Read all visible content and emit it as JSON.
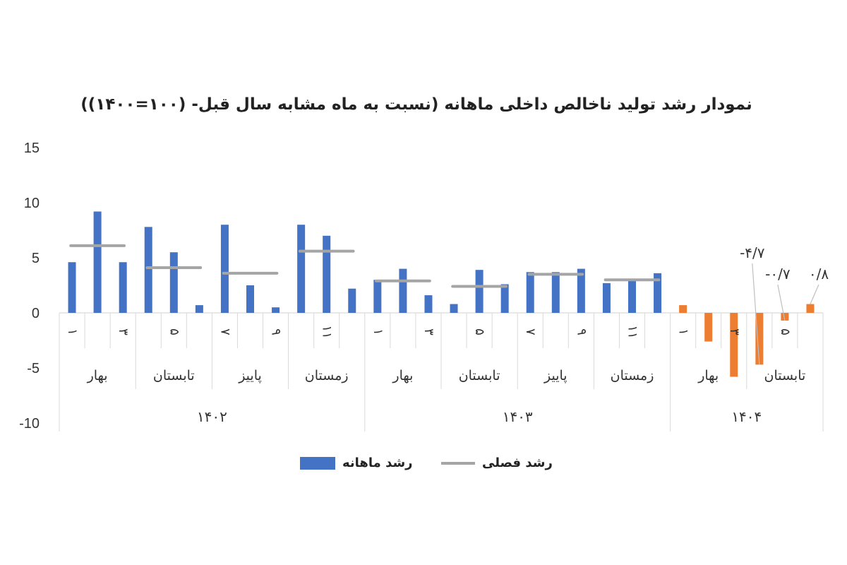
{
  "chart_data": {
    "type": "bar",
    "title": "نمودار رشد تولید ناخالص داخلی ماهانه (نسبت به ماه مشابه سال قبل- (۱۰۰=۱۴۰۰))",
    "y_ticks": [
      "15",
      "10",
      "5",
      "0",
      "-5",
      "-10"
    ],
    "ylim": [
      -10,
      15
    ],
    "colors": {
      "monthly": "#4472C4",
      "monthly_negative_highlight": "#ED7D31",
      "seasonal": "#A5A5A5"
    },
    "months": [
      {
        "year": "۱۴۰۲",
        "season": "بهار",
        "label": "۱",
        "value": 4.6
      },
      {
        "year": "۱۴۰۲",
        "season": "بهار",
        "label": "",
        "value": 9.2
      },
      {
        "year": "۱۴۰۲",
        "season": "بهار",
        "label": "۳",
        "value": 4.6
      },
      {
        "year": "۱۴۰۲",
        "season": "تابستان",
        "label": "",
        "value": 7.8
      },
      {
        "year": "۱۴۰۲",
        "season": "تابستان",
        "label": "۵",
        "value": 5.5
      },
      {
        "year": "۱۴۰۲",
        "season": "تابستان",
        "label": "",
        "value": 0.7
      },
      {
        "year": "۱۴۰۲",
        "season": "پاییز",
        "label": "۷",
        "value": 8.0
      },
      {
        "year": "۱۴۰۲",
        "season": "پاییز",
        "label": "",
        "value": 2.5
      },
      {
        "year": "۱۴۰۲",
        "season": "پاییز",
        "label": "۹",
        "value": 0.5
      },
      {
        "year": "۱۴۰۲",
        "season": "زمستان",
        "label": "",
        "value": 8.0
      },
      {
        "year": "۱۴۰۲",
        "season": "زمستان",
        "label": "۱۱",
        "value": 7.0
      },
      {
        "year": "۱۴۰۲",
        "season": "زمستان",
        "label": "",
        "value": 2.2
      },
      {
        "year": "۱۴۰۳",
        "season": "بهار",
        "label": "۱",
        "value": 3.0
      },
      {
        "year": "۱۴۰۳",
        "season": "بهار",
        "label": "",
        "value": 4.0
      },
      {
        "year": "۱۴۰۳",
        "season": "بهار",
        "label": "۳",
        "value": 1.6
      },
      {
        "year": "۱۴۰۳",
        "season": "تابستان",
        "label": "",
        "value": 0.8
      },
      {
        "year": "۱۴۰۳",
        "season": "تابستان",
        "label": "۵",
        "value": 3.9
      },
      {
        "year": "۱۴۰۳",
        "season": "تابستان",
        "label": "",
        "value": 2.6
      },
      {
        "year": "۱۴۰۳",
        "season": "پاییز",
        "label": "۷",
        "value": 3.7
      },
      {
        "year": "۱۴۰۳",
        "season": "پاییز",
        "label": "",
        "value": 3.7
      },
      {
        "year": "۱۴۰۳",
        "season": "پاییز",
        "label": "۹",
        "value": 4.0
      },
      {
        "year": "۱۴۰۳",
        "season": "زمستان",
        "label": "",
        "value": 2.7
      },
      {
        "year": "۱۴۰۳",
        "season": "زمستان",
        "label": "۱۱",
        "value": 3.1
      },
      {
        "year": "۱۴۰۳",
        "season": "زمستان",
        "label": "",
        "value": 3.6
      },
      {
        "year": "۱۴۰۴",
        "season": "بهار",
        "label": "۱",
        "value": 0.7
      },
      {
        "year": "۱۴۰۴",
        "season": "بهار",
        "label": "",
        "value": -2.6
      },
      {
        "year": "۱۴۰۴",
        "season": "بهار",
        "label": "۳",
        "value": -5.8
      },
      {
        "year": "۱۴۰۴",
        "season": "تابستان",
        "label": "",
        "value": -4.7,
        "data_label": "-۴/۷"
      },
      {
        "year": "۱۴۰۴",
        "season": "تابستان",
        "label": "۵",
        "value": -0.7,
        "data_label": "-۰/۷"
      },
      {
        "year": "۱۴۰۴",
        "season": "تابستان",
        "label": "",
        "value": 0.8,
        "data_label": "۰/۸"
      }
    ],
    "seasonal_series": [
      {
        "year": "۱۴۰۲",
        "season": "بهار",
        "value": 6.1
      },
      {
        "year": "۱۴۰۲",
        "season": "تابستان",
        "value": 4.1
      },
      {
        "year": "۱۴۰۲",
        "season": "پاییز",
        "value": 3.6
      },
      {
        "year": "۱۴۰۲",
        "season": "زمستان",
        "value": 5.6
      },
      {
        "year": "۱۴۰۳",
        "season": "بهار",
        "value": 2.9
      },
      {
        "year": "۱۴۰۳",
        "season": "تابستان",
        "value": 2.4
      },
      {
        "year": "۱۴۰۳",
        "season": "پاییز",
        "value": 3.5
      },
      {
        "year": "۱۴۰۳",
        "season": "زمستان",
        "value": 3.0
      }
    ],
    "legend": {
      "monthly": "رشد ماهانه",
      "seasonal": "رشد فصلی"
    }
  }
}
